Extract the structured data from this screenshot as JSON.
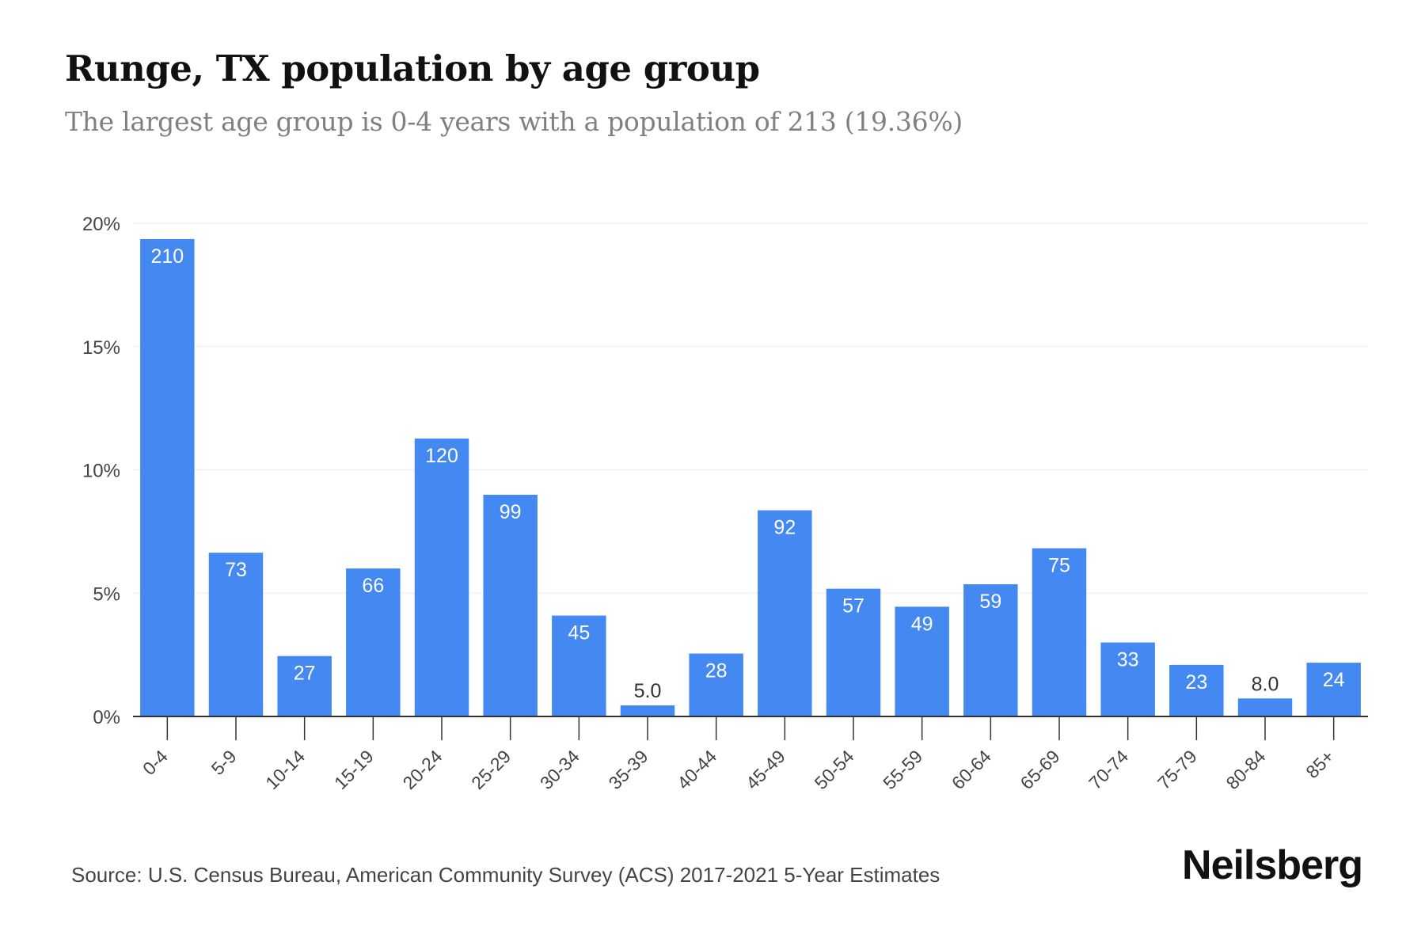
{
  "title": "Runge, TX population by age group",
  "subtitle": "The largest age group is 0-4 years with a population of 213 (19.36%)",
  "source": "Source: U.S. Census Bureau, American Community Survey (ACS) 2017-2021 5-Year Estimates",
  "brand": "Neilsberg",
  "colors": {
    "bar": "#4488F2",
    "grid": "#ebebeb",
    "axis": "#333333",
    "label_inside": "#ffffff",
    "label_outside": "#333333"
  },
  "chart_data": {
    "type": "bar",
    "categories": [
      "0-4",
      "5-9",
      "10-14",
      "15-19",
      "20-24",
      "25-29",
      "30-34",
      "35-39",
      "40-44",
      "45-49",
      "50-54",
      "55-59",
      "60-64",
      "65-69",
      "70-74",
      "75-79",
      "80-84",
      "85+"
    ],
    "series": [
      {
        "values": [
          19.36,
          6.64,
          2.45,
          6.0,
          11.27,
          8.99,
          4.09,
          0.45,
          2.55,
          8.36,
          5.18,
          4.45,
          5.36,
          6.82,
          3.0,
          2.09,
          0.73,
          2.18
        ]
      }
    ],
    "data_labels": [
      "210",
      "73",
      "27",
      "66",
      "120",
      "99",
      "45",
      "5.0",
      "28",
      "92",
      "57",
      "49",
      "59",
      "75",
      "33",
      "23",
      "8.0",
      "24"
    ],
    "yticks": [
      "0%",
      "5%",
      "10%",
      "15%",
      "20%"
    ],
    "ytick_values": [
      0,
      5,
      10,
      15,
      20
    ],
    "ylim": [
      0,
      20
    ],
    "xlabel": "",
    "ylabel": "",
    "grid": true,
    "legend": "none"
  }
}
